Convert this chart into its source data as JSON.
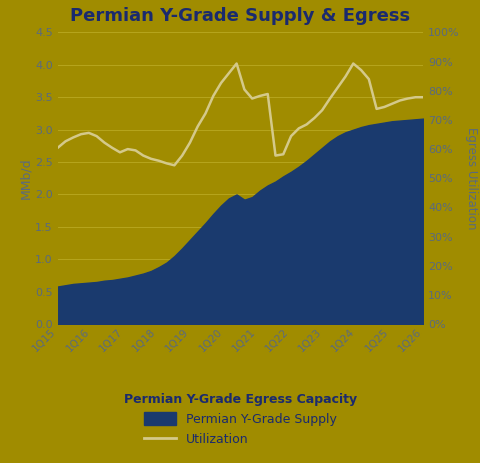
{
  "title": "Permian Y-Grade Supply & Egress",
  "background_color": "#A08C00",
  "plot_bg_color": "#A08C00",
  "title_color": "#1a2a6e",
  "title_fontsize": 13,
  "ylabel_left": "MMb/d",
  "ylabel_right": "Egress Utilization",
  "xlabel": "Permian Y-Grade Egress Capacity",
  "ylim_left": [
    0.0,
    4.5
  ],
  "yticks_left": [
    0.0,
    0.5,
    1.0,
    1.5,
    2.0,
    2.5,
    3.0,
    3.5,
    4.0,
    4.5
  ],
  "yticks_right_labels": [
    "0%",
    "10%",
    "20%",
    "30%",
    "40%",
    "50%",
    "60%",
    "70%",
    "80%",
    "90%",
    "100%"
  ],
  "x_labels": [
    "1Q15",
    "1Q16",
    "1Q17",
    "1Q18",
    "1Q19",
    "1Q20",
    "1Q21",
    "1Q22",
    "1Q23",
    "1Q24",
    "1Q25",
    "1Q26"
  ],
  "supply_color": "#1a3a6e",
  "utilization_color": "#d4c98a",
  "grid_color": "#b8a820",
  "label_color": "#5a6a7e",
  "supply_data": [
    0.58,
    0.6,
    0.62,
    0.63,
    0.64,
    0.65,
    0.67,
    0.68,
    0.7,
    0.72,
    0.75,
    0.78,
    0.82,
    0.88,
    0.95,
    1.05,
    1.17,
    1.3,
    1.43,
    1.56,
    1.7,
    1.83,
    1.94,
    2.0,
    1.92,
    1.96,
    2.06,
    2.14,
    2.2,
    2.28,
    2.35,
    2.43,
    2.52,
    2.62,
    2.72,
    2.82,
    2.9,
    2.96,
    3.0,
    3.04,
    3.07,
    3.09,
    3.11,
    3.13,
    3.14,
    3.15,
    3.16,
    3.17
  ],
  "utilization_data": [
    2.72,
    2.82,
    2.88,
    2.93,
    2.95,
    2.9,
    2.8,
    2.72,
    2.65,
    2.7,
    2.68,
    2.6,
    2.55,
    2.52,
    2.48,
    2.45,
    2.6,
    2.8,
    3.05,
    3.25,
    3.52,
    3.72,
    3.87,
    4.02,
    3.62,
    3.48,
    3.52,
    3.55,
    2.6,
    2.62,
    2.9,
    3.02,
    3.08,
    3.18,
    3.3,
    3.48,
    3.65,
    3.82,
    4.02,
    3.92,
    3.78,
    3.32,
    3.35,
    3.4,
    3.45,
    3.48,
    3.5,
    3.5
  ],
  "legend_supply_label": "Permian Y-Grade Supply",
  "legend_util_label": "Utilization"
}
